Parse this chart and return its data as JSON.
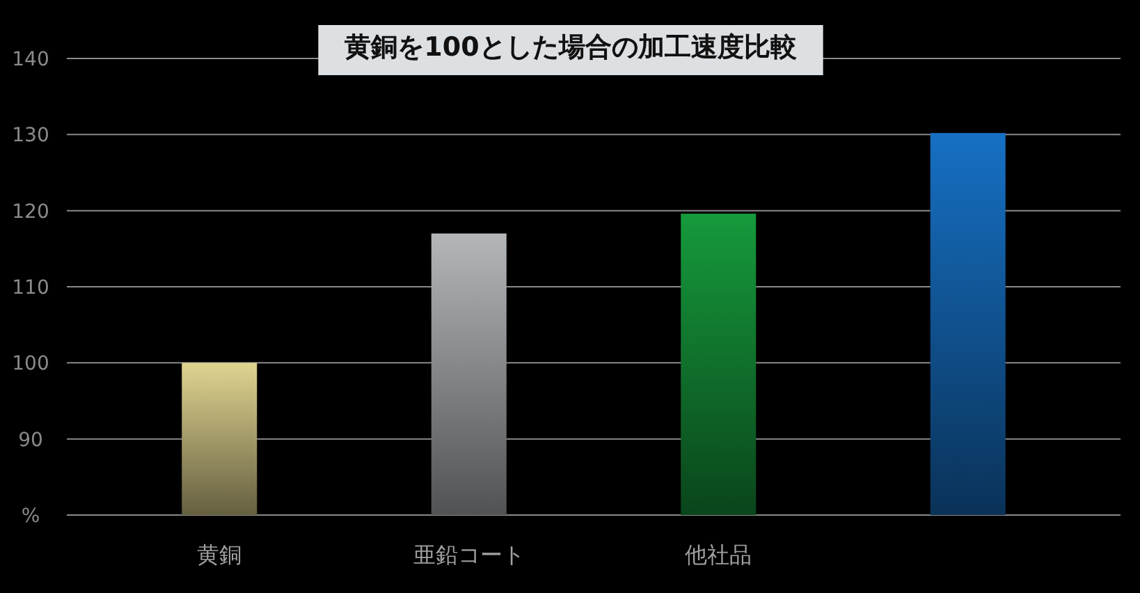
{
  "chart_data": {
    "type": "bar",
    "title": "黄銅を100とした場合の加工速度比較",
    "categories": [
      "黄銅",
      "亜鉛コート",
      "他社品",
      null
    ],
    "values": [
      100,
      117,
      119.6,
      130.2
    ],
    "colors": [
      "#e0d490",
      "#b4b7ba",
      "#169a3c",
      "#1670c4"
    ],
    "ylim": [
      80,
      140
    ],
    "yticks": [
      {
        "value": 80,
        "label": "%"
      },
      90,
      100,
      110,
      120,
      130,
      140
    ],
    "grid": "y"
  }
}
